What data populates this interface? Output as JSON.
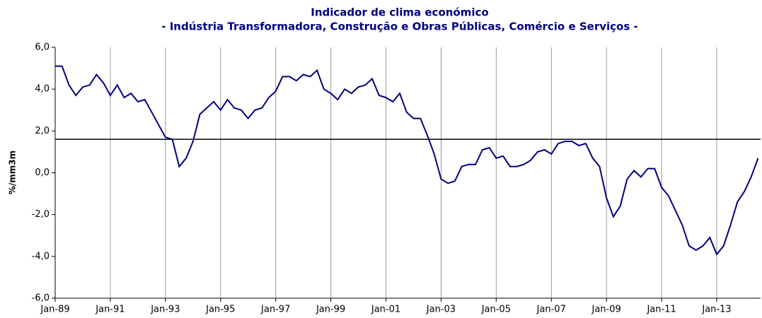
{
  "chart_data": {
    "type": "line",
    "title": "Indicador de clima económico",
    "subtitle": "- Indústria Transformadora, Construção e Obras Públicas, Comércio e Serviços -",
    "y_label": "%/mm3m",
    "categories": [
      "Jan-89",
      null,
      null,
      null,
      null,
      null,
      null,
      null,
      "Jan-91",
      null,
      null,
      null,
      null,
      null,
      null,
      null,
      "Jan-93",
      null,
      null,
      null,
      null,
      null,
      null,
      null,
      "Jan-95",
      null,
      null,
      null,
      null,
      null,
      null,
      null,
      "Jan-97",
      null,
      null,
      null,
      null,
      null,
      null,
      null,
      "Jan-99",
      null,
      null,
      null,
      null,
      null,
      null,
      null,
      "Jan-01",
      null,
      null,
      null,
      null,
      null,
      null,
      null,
      "Jan-03",
      null,
      null,
      null,
      null,
      null,
      null,
      null,
      "Jan-05",
      null,
      null,
      null,
      null,
      null,
      null,
      null,
      "Jan-07",
      null,
      null,
      null,
      null,
      null,
      null,
      null,
      "Jan-09",
      null,
      null,
      null,
      null,
      null,
      null,
      null,
      "Jan-11",
      null,
      null,
      null,
      null,
      null,
      null,
      null,
      "Jan-13",
      null,
      null,
      null,
      null,
      null,
      null
    ],
    "series": [
      {
        "name": "Indicador de clima económico",
        "color": "#000080",
        "values": [
          5.1,
          5.1,
          4.2,
          3.7,
          4.1,
          4.2,
          4.7,
          4.3,
          3.7,
          4.2,
          3.6,
          3.8,
          3.4,
          3.5,
          2.9,
          2.3,
          1.7,
          1.6,
          0.3,
          0.7,
          1.5,
          2.8,
          3.1,
          3.4,
          3.0,
          3.5,
          3.1,
          3.0,
          2.6,
          3.0,
          3.1,
          3.6,
          3.9,
          4.6,
          4.6,
          4.4,
          4.7,
          4.6,
          4.9,
          4.0,
          3.8,
          3.5,
          4.0,
          3.8,
          4.1,
          4.2,
          4.5,
          3.7,
          3.6,
          3.4,
          3.8,
          2.9,
          2.6,
          2.6,
          1.8,
          0.9,
          -0.3,
          -0.5,
          -0.4,
          0.3,
          0.4,
          0.4,
          1.1,
          1.2,
          0.7,
          0.8,
          0.3,
          0.3,
          0.4,
          0.6,
          1.0,
          1.1,
          0.9,
          1.4,
          1.5,
          1.5,
          1.3,
          1.4,
          0.7,
          0.3,
          -1.2,
          -2.1,
          -1.6,
          -0.3,
          0.1,
          -0.2,
          0.2,
          0.2,
          -0.7,
          -1.1,
          -1.8,
          -2.5,
          -3.5,
          -3.7,
          -3.5,
          -3.1,
          -3.9,
          -3.5,
          -2.5,
          -1.4,
          -0.9,
          -0.2,
          0.7
        ]
      }
    ],
    "reference_line": 1.6,
    "ylim": [
      -6,
      6
    ],
    "yticks": [
      {
        "value": -6,
        "label": "-6,0"
      },
      {
        "value": -4,
        "label": "-4,0"
      },
      {
        "value": -2,
        "label": "-2,0"
      },
      {
        "value": 0,
        "label": "0,0"
      },
      {
        "value": 2,
        "label": "2,0"
      },
      {
        "value": 4,
        "label": "4,0"
      },
      {
        "value": 6,
        "label": "6,0"
      }
    ],
    "x_grid": true
  }
}
